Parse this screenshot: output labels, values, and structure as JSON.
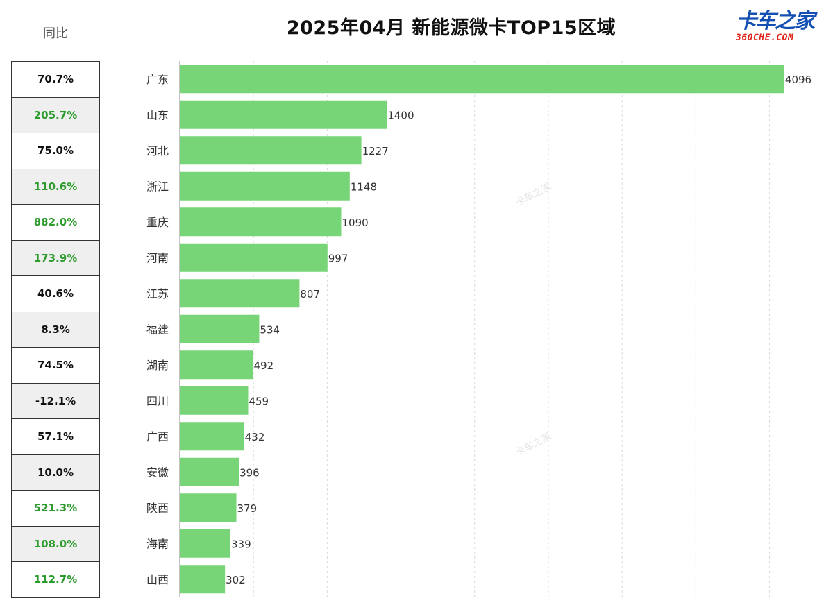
{
  "header": {
    "title": "2025年04月 新能源微卡TOP15区域",
    "yoy_label": "同比"
  },
  "logo": {
    "name": "卡车之家",
    "domain": "360CHE.COM"
  },
  "watermark": "卡车之家",
  "colors": {
    "bar": "#77d577",
    "positive_yoy": "#2e9b2e",
    "text": "#111111"
  },
  "chart_data": {
    "type": "bar",
    "orientation": "horizontal",
    "title": "2025年04月 新能源微卡TOP15区域",
    "categories": [
      "广东",
      "山东",
      "河北",
      "浙江",
      "重庆",
      "河南",
      "江苏",
      "福建",
      "湖南",
      "四川",
      "广西",
      "安徽",
      "陕西",
      "海南",
      "山西"
    ],
    "values": [
      4096,
      1400,
      1227,
      1148,
      1090,
      997,
      807,
      534,
      492,
      459,
      432,
      396,
      379,
      339,
      302
    ],
    "yoy": [
      "70.7%",
      "205.7%",
      "75.0%",
      "110.6%",
      "882.0%",
      "173.9%",
      "40.6%",
      "8.3%",
      "74.5%",
      "-12.1%",
      "57.1%",
      "10.0%",
      "521.3%",
      "108.0%",
      "112.7%"
    ],
    "yoy_highlight": [
      false,
      true,
      false,
      true,
      true,
      true,
      false,
      false,
      false,
      false,
      false,
      false,
      true,
      true,
      true
    ],
    "xlim": [
      0,
      4200
    ],
    "grid": true
  }
}
